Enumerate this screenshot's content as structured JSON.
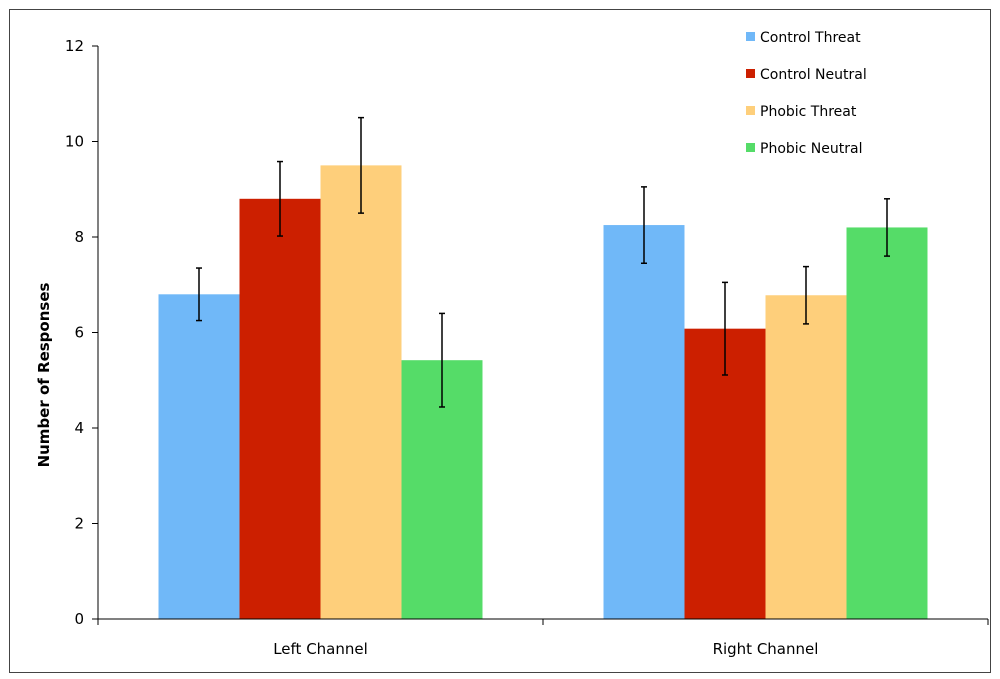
{
  "chart_data": {
    "type": "bar",
    "title": "",
    "xlabel": "",
    "ylabel": "Number of Responses",
    "ylim": [
      0,
      12
    ],
    "yticks": [
      0,
      2,
      4,
      6,
      8,
      10,
      12
    ],
    "categories": [
      "Left Channel",
      "Right Channel"
    ],
    "series": [
      {
        "name": "Control Threat",
        "color": "#70b8f8",
        "values": [
          6.8,
          8.25
        ],
        "errors": [
          0.55,
          0.8
        ]
      },
      {
        "name": "Control Neutral",
        "color": "#cc1f00",
        "values": [
          8.8,
          6.08
        ],
        "errors": [
          0.78,
          0.97
        ]
      },
      {
        "name": "Phobic Threat",
        "color": "#fecf7b",
        "values": [
          9.5,
          6.78
        ],
        "errors": [
          1.0,
          0.6
        ]
      },
      {
        "name": "Phobic Neutral",
        "color": "#55dc68",
        "values": [
          5.42,
          8.2
        ],
        "errors": [
          0.98,
          0.6
        ]
      }
    ],
    "grid": false,
    "legend_position": "top-right"
  }
}
